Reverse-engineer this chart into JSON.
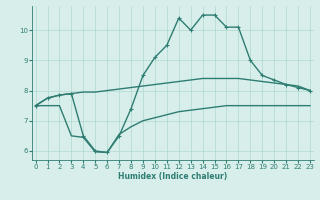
{
  "xlabel": "Humidex (Indice chaleur)",
  "x": [
    0,
    1,
    2,
    3,
    4,
    5,
    6,
    7,
    8,
    9,
    10,
    11,
    12,
    13,
    14,
    15,
    16,
    17,
    18,
    19,
    20,
    21,
    22,
    23
  ],
  "flat_y": [
    7.5,
    7.75,
    7.85,
    7.9,
    7.95,
    7.95,
    8.0,
    8.05,
    8.1,
    8.15,
    8.2,
    8.25,
    8.3,
    8.35,
    8.4,
    8.4,
    8.4,
    8.4,
    8.35,
    8.3,
    8.25,
    8.2,
    8.15,
    8.0
  ],
  "peak_y": [
    7.5,
    7.75,
    7.85,
    7.9,
    6.5,
    6.0,
    5.95,
    6.5,
    7.4,
    8.5,
    9.1,
    9.5,
    10.4,
    10.0,
    10.5,
    10.5,
    10.1,
    10.1,
    9.0,
    8.5,
    8.35,
    8.2,
    8.1,
    8.0
  ],
  "bot_y": [
    7.5,
    7.5,
    7.5,
    6.5,
    6.45,
    5.97,
    5.95,
    6.55,
    6.8,
    7.0,
    7.1,
    7.2,
    7.3,
    7.35,
    7.4,
    7.45,
    7.5,
    7.5,
    7.5,
    7.5,
    7.5,
    7.5,
    7.5,
    7.5
  ],
  "color": "#2e7d72",
  "bg_color": "#d8eeea",
  "grid_color": "#b0d8d2",
  "ylim": [
    5.7,
    10.8
  ],
  "yticks": [
    6,
    7,
    8,
    9,
    10
  ],
  "xticks": [
    0,
    1,
    2,
    3,
    4,
    5,
    6,
    7,
    8,
    9,
    10,
    11,
    12,
    13,
    14,
    15,
    16,
    17,
    18,
    19,
    20,
    21,
    22,
    23
  ]
}
